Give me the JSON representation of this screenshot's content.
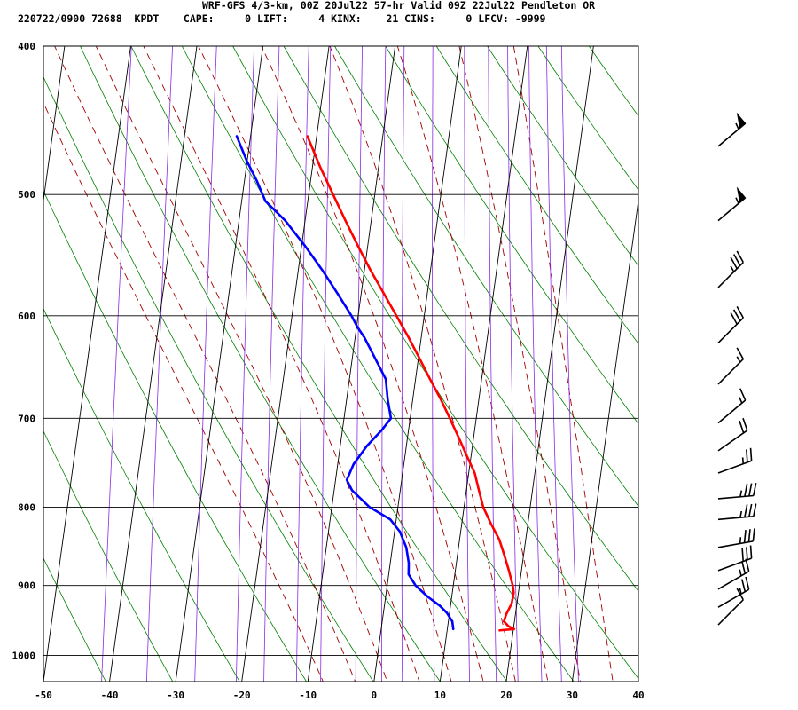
{
  "header": {
    "line1": "WRF-GFS 4/3-km, 00Z 20Jul22 57-hr Valid 09Z 22Jul22 Pendleton OR",
    "line2": "220722/0900 72688  KPDT    CAPE:     0 LIFT:     4 KINX:    21 CINS:     0 LFCV: -9999"
  },
  "colors": {
    "temperature": "#ff0000",
    "dewpoint": "#0000ff",
    "isotherm": "#000000",
    "isobar": "#000000",
    "dry_adiabat": "#008000",
    "moist_adiabat": "#a00000",
    "mixing_ratio": "#8a2be2",
    "barb": "#000000"
  },
  "chart_data": {
    "type": "skew-t log-p sounding",
    "xlim": [
      -50,
      40
    ],
    "ylim": [
      1040,
      400
    ],
    "x_ticks": [
      "-50",
      "-40",
      "-30",
      "-20",
      "-10",
      "0",
      "10",
      "20",
      "30",
      "40"
    ],
    "y_ticks": [
      "400",
      "500",
      "600",
      "700",
      "800",
      "900",
      "1000"
    ],
    "grid": true,
    "series": [
      {
        "key": "temperature",
        "points": [
          [
            961,
            20.1
          ],
          [
            957,
            19.2
          ],
          [
            950,
            18.4
          ],
          [
            940,
            18.6
          ],
          [
            925,
            19.2
          ],
          [
            910,
            19.3
          ],
          [
            900,
            19.0
          ],
          [
            880,
            18.1
          ],
          [
            860,
            17.1
          ],
          [
            840,
            16.0
          ],
          [
            820,
            14.4
          ],
          [
            800,
            12.9
          ],
          [
            780,
            11.9
          ],
          [
            760,
            10.9
          ],
          [
            740,
            9.3
          ],
          [
            720,
            7.7
          ],
          [
            700,
            6.0
          ],
          [
            680,
            4.2
          ],
          [
            660,
            2.2
          ],
          [
            640,
            0.2
          ],
          [
            620,
            -1.9
          ],
          [
            600,
            -4.2
          ],
          [
            580,
            -6.6
          ],
          [
            560,
            -9.1
          ],
          [
            540,
            -11.5
          ],
          [
            520,
            -13.9
          ],
          [
            500,
            -16.3
          ],
          [
            480,
            -18.8
          ],
          [
            458,
            -21.4
          ]
        ]
      },
      {
        "key": "dewpoint",
        "points": [
          [
            961,
            10.9
          ],
          [
            950,
            10.6
          ],
          [
            938,
            9.6
          ],
          [
            928,
            8.4
          ],
          [
            915,
            6.3
          ],
          [
            900,
            4.3
          ],
          [
            885,
            3.0
          ],
          [
            870,
            2.8
          ],
          [
            850,
            2.1
          ],
          [
            830,
            0.8
          ],
          [
            815,
            -0.9
          ],
          [
            800,
            -4.3
          ],
          [
            780,
            -7.3
          ],
          [
            768,
            -8.3
          ],
          [
            750,
            -7.6
          ],
          [
            730,
            -6.0
          ],
          [
            712,
            -4.0
          ],
          [
            700,
            -2.9
          ],
          [
            680,
            -3.8
          ],
          [
            660,
            -4.5
          ],
          [
            640,
            -6.5
          ],
          [
            620,
            -8.6
          ],
          [
            610,
            -9.9
          ],
          [
            600,
            -11.0
          ],
          [
            580,
            -13.6
          ],
          [
            560,
            -16.4
          ],
          [
            540,
            -19.5
          ],
          [
            520,
            -23.0
          ],
          [
            505,
            -26.4
          ],
          [
            490,
            -28.1
          ],
          [
            475,
            -30.1
          ],
          [
            458,
            -32.1
          ]
        ]
      }
    ],
    "wind_barbs": [
      {
        "p": 955,
        "dir": 225,
        "kt": 10
      },
      {
        "p": 930,
        "dir": 240,
        "kt": 25
      },
      {
        "p": 905,
        "dir": 240,
        "kt": 25
      },
      {
        "p": 880,
        "dir": 250,
        "kt": 30
      },
      {
        "p": 850,
        "dir": 260,
        "kt": 35
      },
      {
        "p": 815,
        "dir": 265,
        "kt": 35
      },
      {
        "p": 790,
        "dir": 265,
        "kt": 35
      },
      {
        "p": 760,
        "dir": 250,
        "kt": 25
      },
      {
        "p": 735,
        "dir": 235,
        "kt": 20
      },
      {
        "p": 705,
        "dir": 230,
        "kt": 15
      },
      {
        "p": 665,
        "dir": 225,
        "kt": 15
      },
      {
        "p": 625,
        "dir": 225,
        "kt": 30
      },
      {
        "p": 575,
        "dir": 225,
        "kt": 35
      },
      {
        "p": 520,
        "dir": 230,
        "kt": 55
      },
      {
        "p": 465,
        "dir": 230,
        "kt": 55
      }
    ]
  }
}
